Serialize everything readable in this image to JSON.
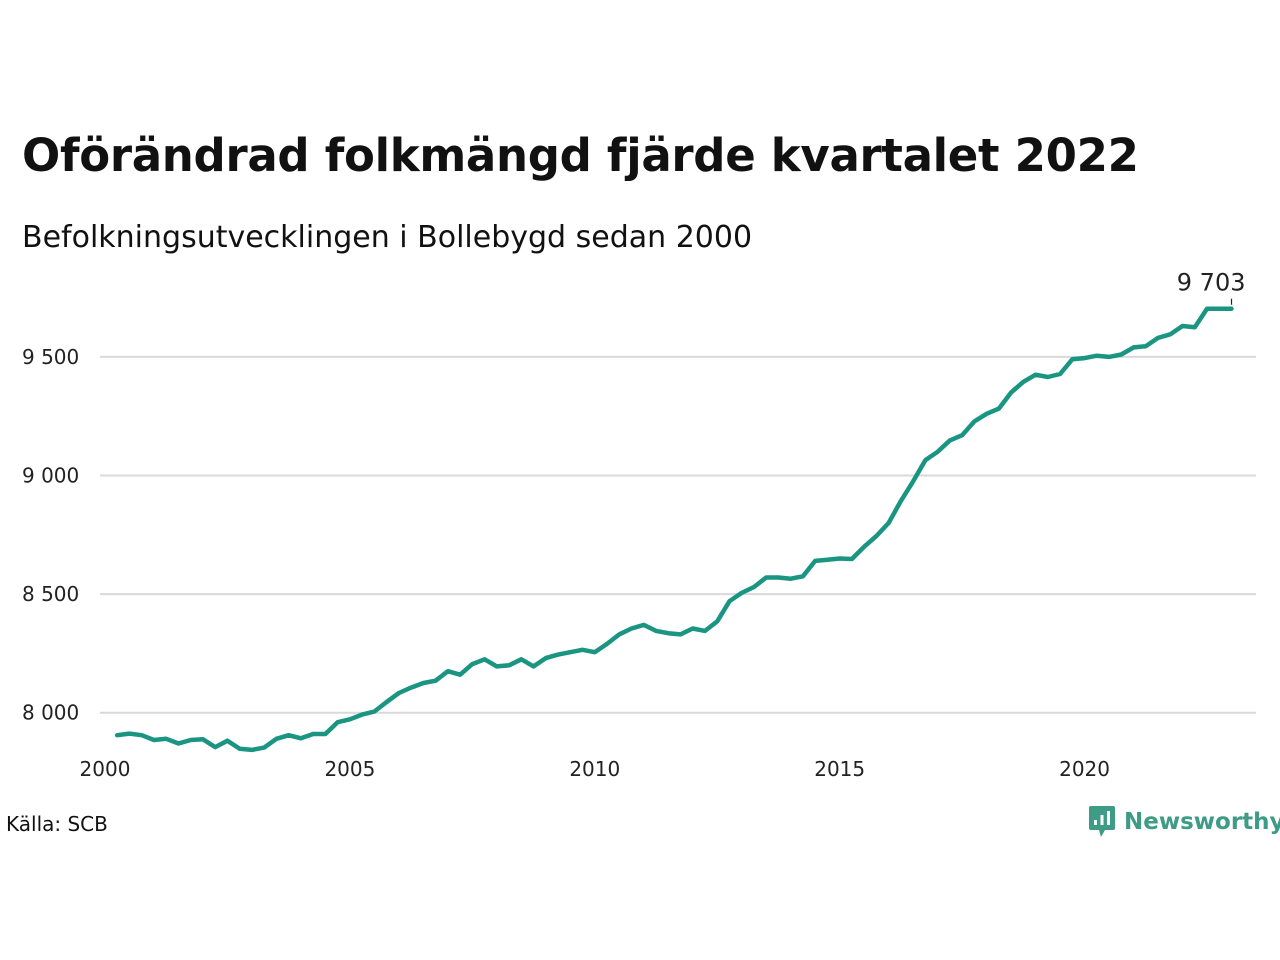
{
  "title": "Oförändrad folkmängd fjärde kvartalet 2022",
  "subtitle": "Befolkningsutvecklingen i Bollebygd sedan 2000",
  "source": "Källa: SCB",
  "brand": {
    "name": "Newsworthy",
    "color": "#3d9b86",
    "icon": "newsworthy-logo-icon"
  },
  "colors": {
    "line": "#1a9582",
    "grid": "#d9d9d9"
  },
  "chart_data": {
    "type": "line",
    "title": "Oförändrad folkmängd fjärde kvartalet 2022",
    "subtitle": "Befolkningsutvecklingen i Bollebygd sedan 2000",
    "xlabel": "",
    "ylabel": "",
    "xlim": [
      2000.0,
      2023.5
    ],
    "ylim": [
      7750,
      9900
    ],
    "x_ticks": [
      2000,
      2005,
      2010,
      2015,
      2020
    ],
    "x_tick_labels": [
      "2000",
      "2005",
      "2010",
      "2015",
      "2020"
    ],
    "y_ticks": [
      8000,
      9000,
      9500
    ],
    "y_tick_labels": [
      "8 000",
      "9 000",
      "9 500"
    ],
    "grid_values": [
      8000,
      8500,
      9000,
      9500
    ],
    "grid_labels": [
      "8 000",
      "8 500",
      "9 000",
      "9 500"
    ],
    "grid": true,
    "end_label": "9 703",
    "series": [
      {
        "x": [
          2000.25,
          2000.5,
          2000.75,
          2001.0,
          2001.25,
          2001.5,
          2001.75,
          2002.0,
          2002.25,
          2002.5,
          2002.75,
          2003.0,
          2003.25,
          2003.5,
          2003.75,
          2004.0,
          2004.25,
          2004.5,
          2004.75,
          2005.0,
          2005.25,
          2005.5,
          2005.75,
          2006.0,
          2006.25,
          2006.5,
          2006.75,
          2007.0,
          2007.25,
          2007.5,
          2007.75,
          2008.0,
          2008.25,
          2008.5,
          2008.75,
          2009.0,
          2009.25,
          2009.5,
          2009.75,
          2010.0,
          2010.25,
          2010.5,
          2010.75,
          2011.0,
          2011.25,
          2011.5,
          2011.75,
          2012.0,
          2012.25,
          2012.5,
          2012.75,
          2013.0,
          2013.25,
          2013.5,
          2013.75,
          2014.0,
          2014.25,
          2014.5,
          2014.75,
          2015.0,
          2015.25,
          2015.5,
          2015.75,
          2016.0,
          2016.25,
          2016.5,
          2016.75,
          2017.0,
          2017.25,
          2017.5,
          2017.75,
          2018.0,
          2018.25,
          2018.5,
          2018.75,
          2019.0,
          2019.25,
          2019.5,
          2019.75,
          2020.0,
          2020.25,
          2020.5,
          2020.75,
          2021.0,
          2021.25,
          2021.5,
          2021.75,
          2022.0,
          2022.25,
          2022.5,
          2022.75,
          2023.0
        ],
        "values": [
          7905,
          7912,
          7905,
          7885,
          7890,
          7870,
          7885,
          7888,
          7855,
          7882,
          7848,
          7843,
          7853,
          7890,
          7905,
          7892,
          7910,
          7910,
          7960,
          7972,
          7992,
          8005,
          8045,
          8083,
          8106,
          8125,
          8135,
          8175,
          8160,
          8205,
          8225,
          8195,
          8200,
          8225,
          8195,
          8230,
          8245,
          8255,
          8265,
          8255,
          8290,
          8330,
          8355,
          8370,
          8345,
          8335,
          8330,
          8355,
          8345,
          8385,
          8470,
          8505,
          8530,
          8570,
          8570,
          8565,
          8575,
          8640,
          8645,
          8650,
          8648,
          8700,
          8745,
          8800,
          8893,
          8975,
          9065,
          9100,
          9148,
          9170,
          9228,
          9260,
          9282,
          9350,
          9395,
          9425,
          9415,
          9428,
          9490,
          9495,
          9505,
          9500,
          9510,
          9540,
          9545,
          9580,
          9595,
          9630,
          9625,
          9703,
          9703,
          9703
        ]
      }
    ]
  }
}
